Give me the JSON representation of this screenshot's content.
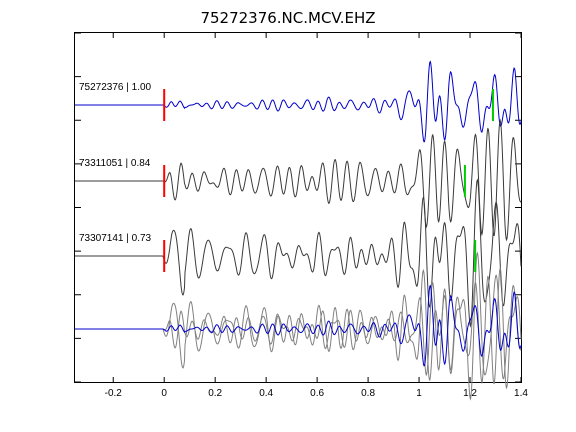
{
  "chart_data": {
    "type": "line",
    "title": "75272376.NC.MCV.EHZ",
    "xlabel": "",
    "ylabel": "",
    "xlim": [
      -0.35,
      1.4
    ],
    "ylim": [
      0,
      1
    ],
    "x_ticks": [
      -0.2,
      0,
      0.2,
      0.4,
      0.6,
      0.8,
      1,
      1.2,
      1.4
    ],
    "x_tick_labels": [
      "-0.2",
      "0",
      "0.2",
      "0.4",
      "0.6",
      "0.8",
      "1",
      "1.2",
      "1.4"
    ],
    "y_tick_count": 9,
    "grid": false,
    "colors": {
      "master": "#0000cc",
      "other": "#3a3a3a",
      "overlay_other": "#808080",
      "p_pick": "#ff0000",
      "s_pick": "#00cc00"
    },
    "p_pick_time": 0.0,
    "traces": [
      {
        "label": "75272376 | 1.00",
        "id": "75272376",
        "cc": "1.00",
        "color": "#0000cc",
        "s_pick_time": 1.29
      },
      {
        "label": "73311051 | 0.84",
        "id": "73311051",
        "cc": "0.84",
        "color": "#3a3a3a",
        "s_pick_time": 1.18
      },
      {
        "label": "73307141 | 0.73",
        "id": "73307141",
        "cc": "0.73",
        "color": "#3a3a3a",
        "s_pick_time": 1.22
      }
    ]
  }
}
